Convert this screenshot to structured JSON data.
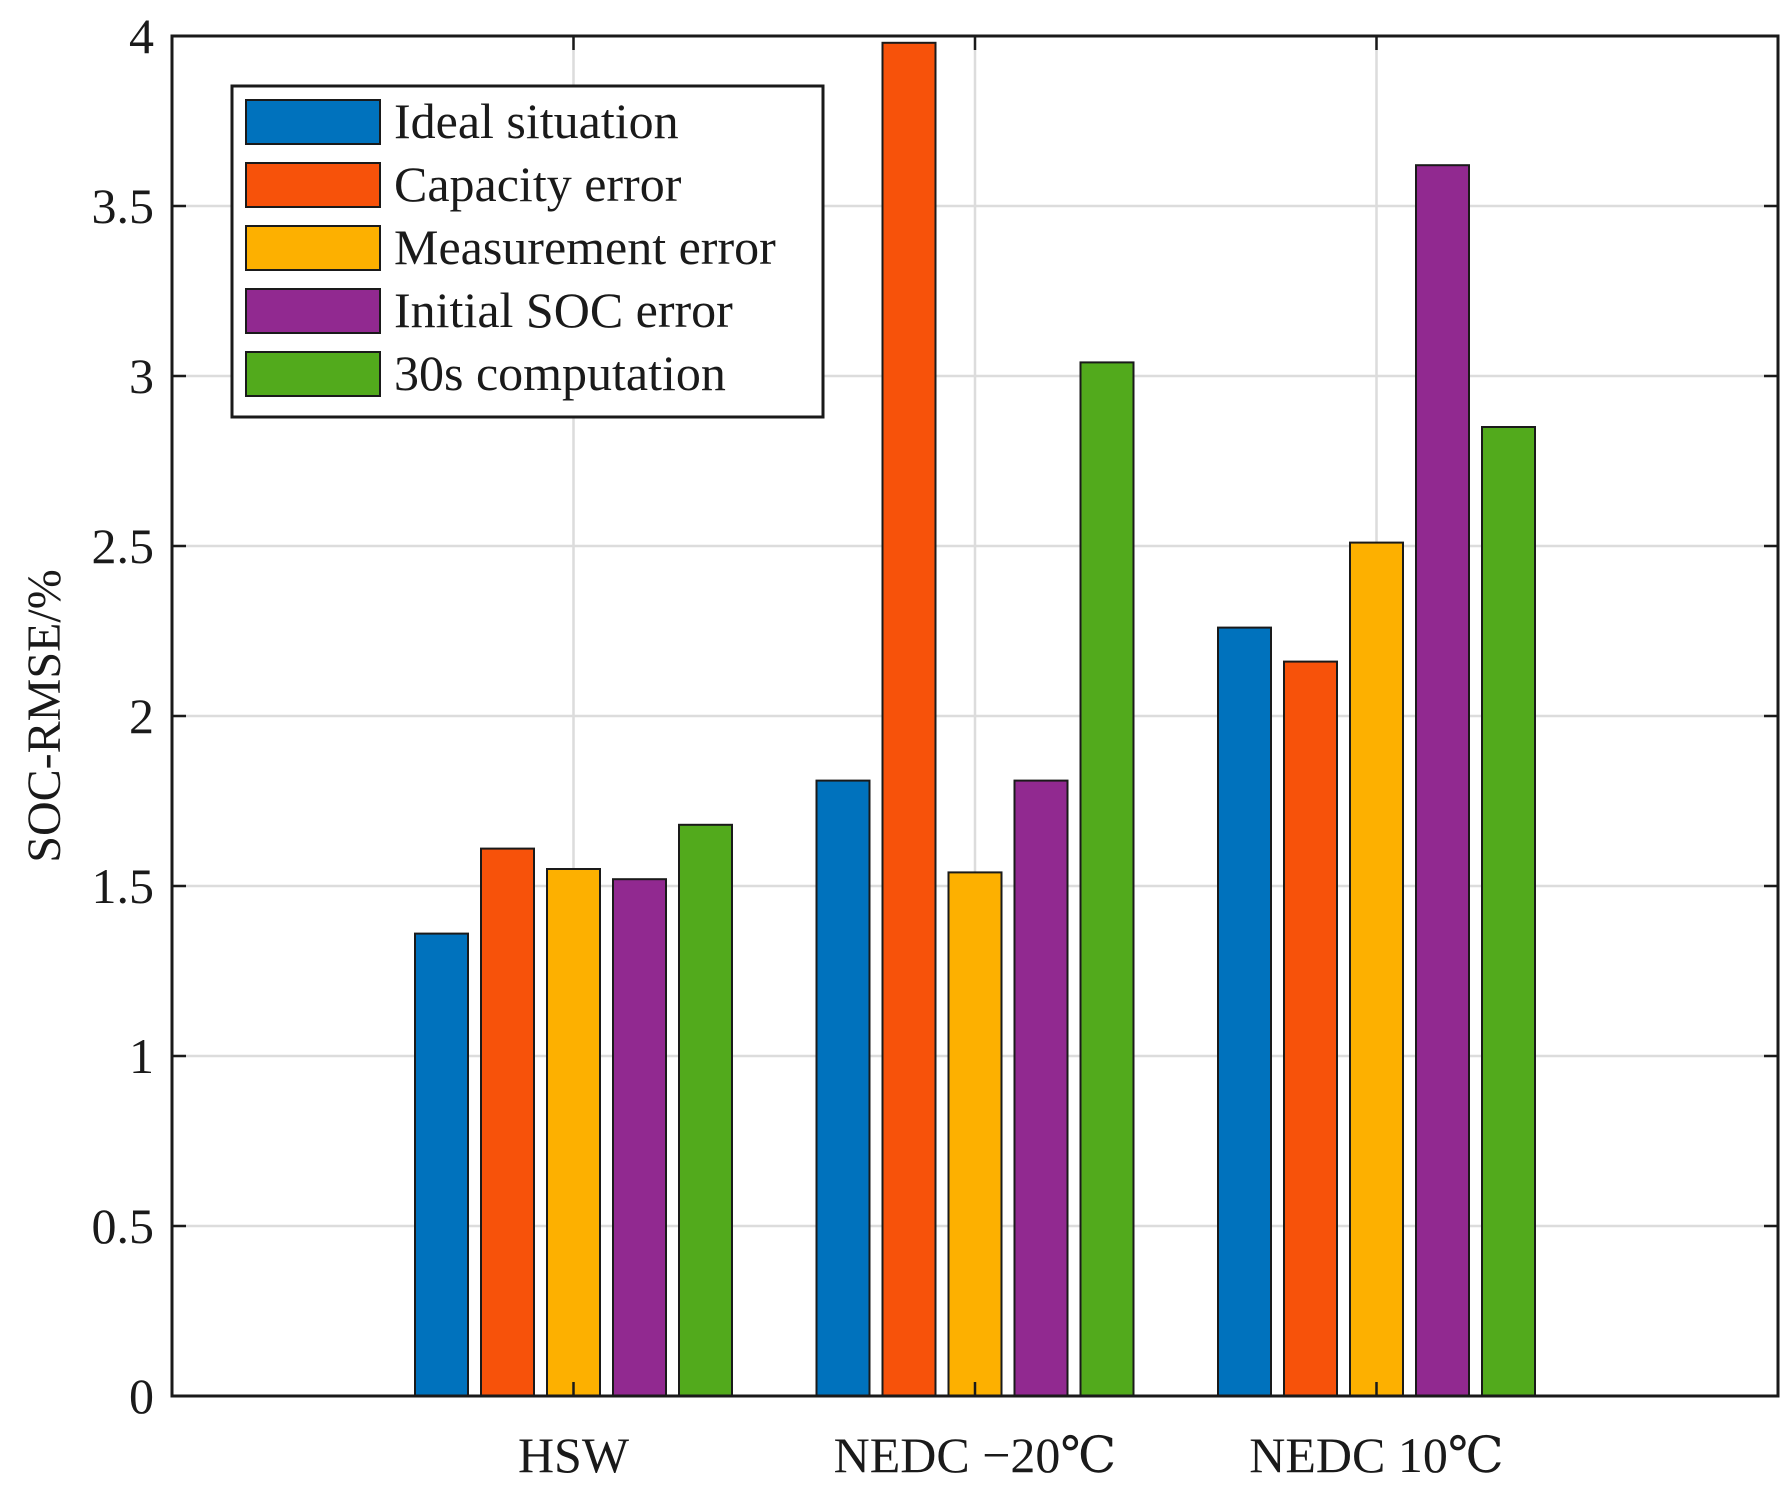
{
  "chart_data": {
    "type": "bar",
    "title": "",
    "xlabel": "",
    "ylabel": "SOC-RMSE/%",
    "ylim": [
      0,
      4
    ],
    "yticks": [
      "0",
      "0.5",
      "1",
      "1.5",
      "2",
      "2.5",
      "3",
      "3.5",
      "4"
    ],
    "grid": true,
    "legend_position": "top-left",
    "categories": [
      "HSW",
      "NEDC −20℃",
      "NEDC 10℃"
    ],
    "series": [
      {
        "name": "Ideal situation",
        "color": "#0072BD",
        "values": [
          1.36,
          1.81,
          2.26
        ]
      },
      {
        "name": "Capacity error",
        "color": "#F7520A",
        "values": [
          1.61,
          3.98,
          2.16
        ]
      },
      {
        "name": "Measurement error",
        "color": "#FDB000",
        "values": [
          1.55,
          1.54,
          2.51
        ]
      },
      {
        "name": "Initial SOC error",
        "color": "#912990",
        "values": [
          1.52,
          1.81,
          3.62
        ]
      },
      {
        "name": "30s computation",
        "color": "#52AA1C",
        "values": [
          1.68,
          3.04,
          2.85
        ]
      }
    ]
  }
}
